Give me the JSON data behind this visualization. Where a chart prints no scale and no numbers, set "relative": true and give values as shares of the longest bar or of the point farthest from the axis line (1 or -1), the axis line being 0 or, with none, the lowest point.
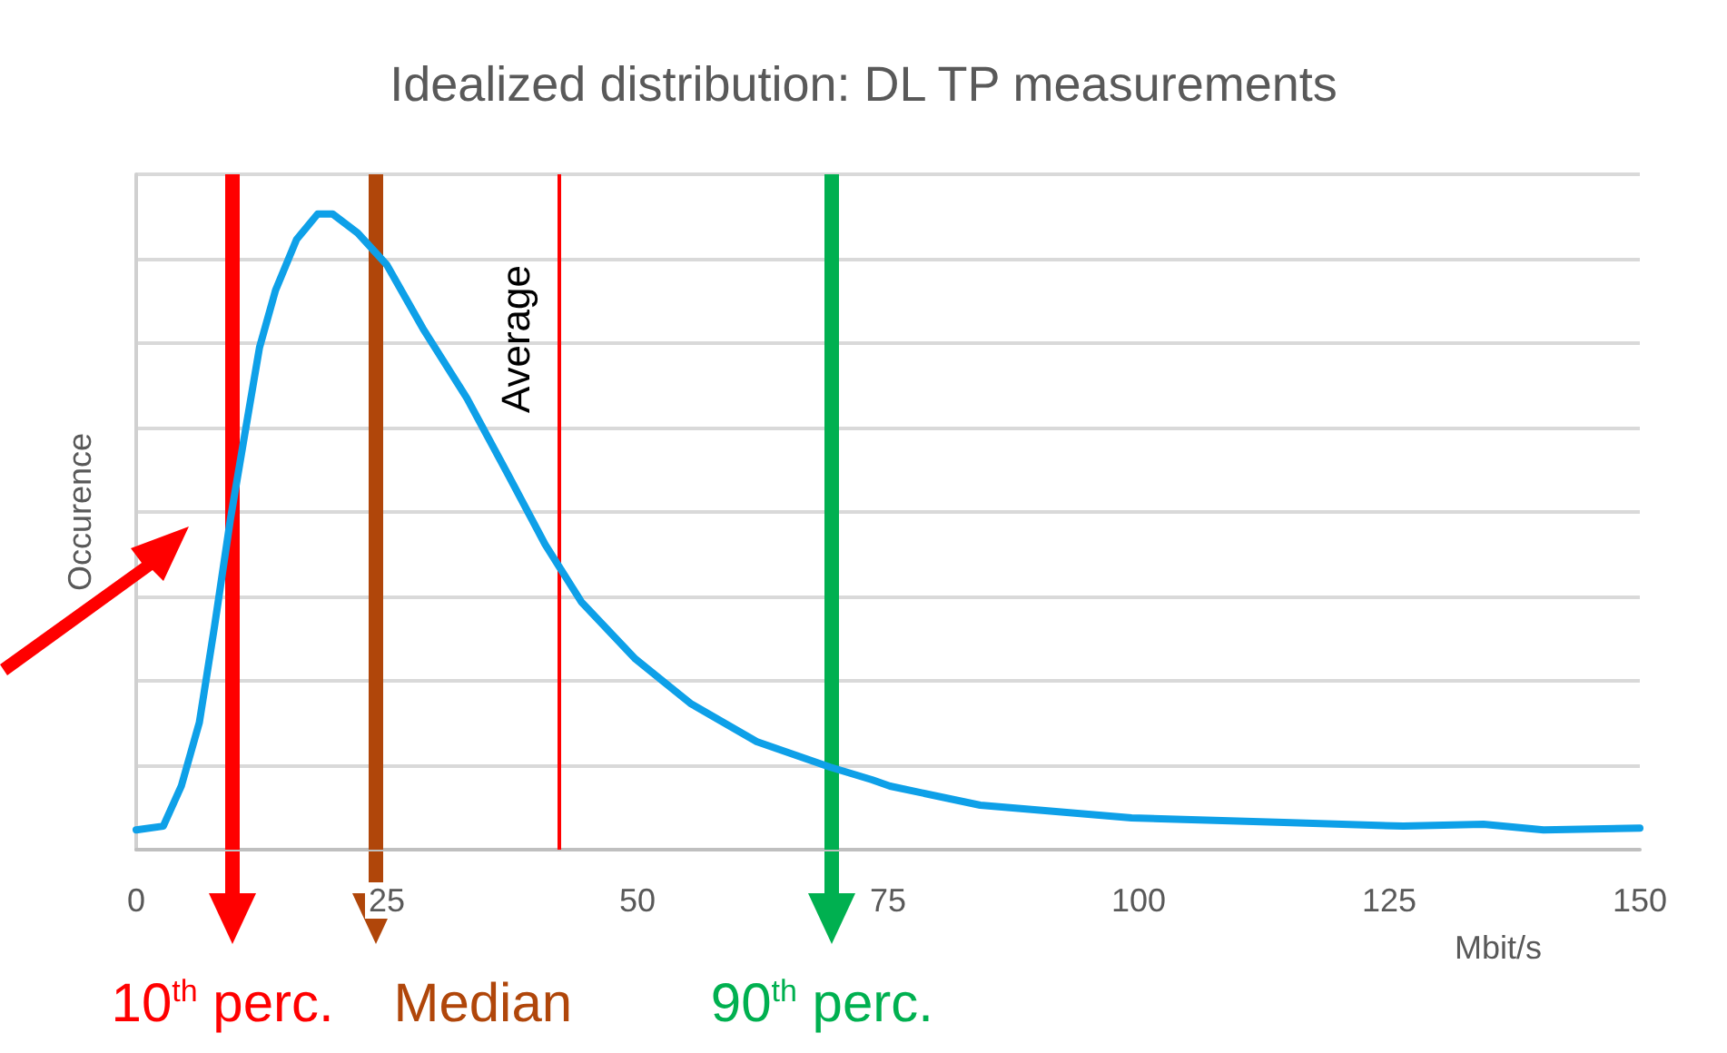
{
  "chart_data": {
    "type": "line",
    "title": "Idealized distribution: DL TP measurements",
    "xlabel": "Mbit/s",
    "ylabel": "Occurence",
    "relative": true,
    "x": [
      0,
      2.7,
      4.5,
      6.3,
      7.8,
      9.4,
      10.9,
      12.3,
      13.9,
      16.0,
      18.1,
      19.6,
      22.1,
      25.0,
      28.6,
      33.0,
      37.1,
      40.8,
      44.4,
      49.8,
      55.3,
      61.9,
      69.2,
      73.4,
      75.2,
      84.2,
      99.3,
      114.5,
      126.4,
      134.4,
      140.4,
      150
    ],
    "series": [
      {
        "color": "#0ea0e8",
        "values": [
          0.031,
          0.037,
          0.1,
          0.2,
          0.35,
          0.52,
          0.66,
          0.79,
          0.88,
          0.96,
          1.0,
          1.0,
          0.97,
          0.92,
          0.82,
          0.71,
          0.59,
          0.48,
          0.39,
          0.3,
          0.23,
          0.17,
          0.13,
          0.11,
          0.1,
          0.07,
          0.05,
          0.043,
          0.037,
          0.04,
          0.031,
          0.034
        ]
      }
    ],
    "xlim": [
      0,
      150
    ],
    "xticks": [
      0,
      25,
      50,
      75,
      100,
      125,
      150
    ],
    "ref_lines": [
      {
        "axis": "x",
        "value": 9.6,
        "label": "10$^{th}$ perc.",
        "color": "#ff0000"
      },
      {
        "axis": "x",
        "value": 23.9,
        "label": "Median",
        "color": "#b0460a"
      },
      {
        "axis": "x",
        "value": 42.2,
        "label": "Average",
        "color": "#ff0000"
      },
      {
        "axis": "x",
        "value": 69.4,
        "label": "90$^{th}$ perc.",
        "color": "#00b050"
      }
    ],
    "grid": "y",
    "tick_labels": "x",
    "marker": "none",
    "line_style": "solid"
  }
}
